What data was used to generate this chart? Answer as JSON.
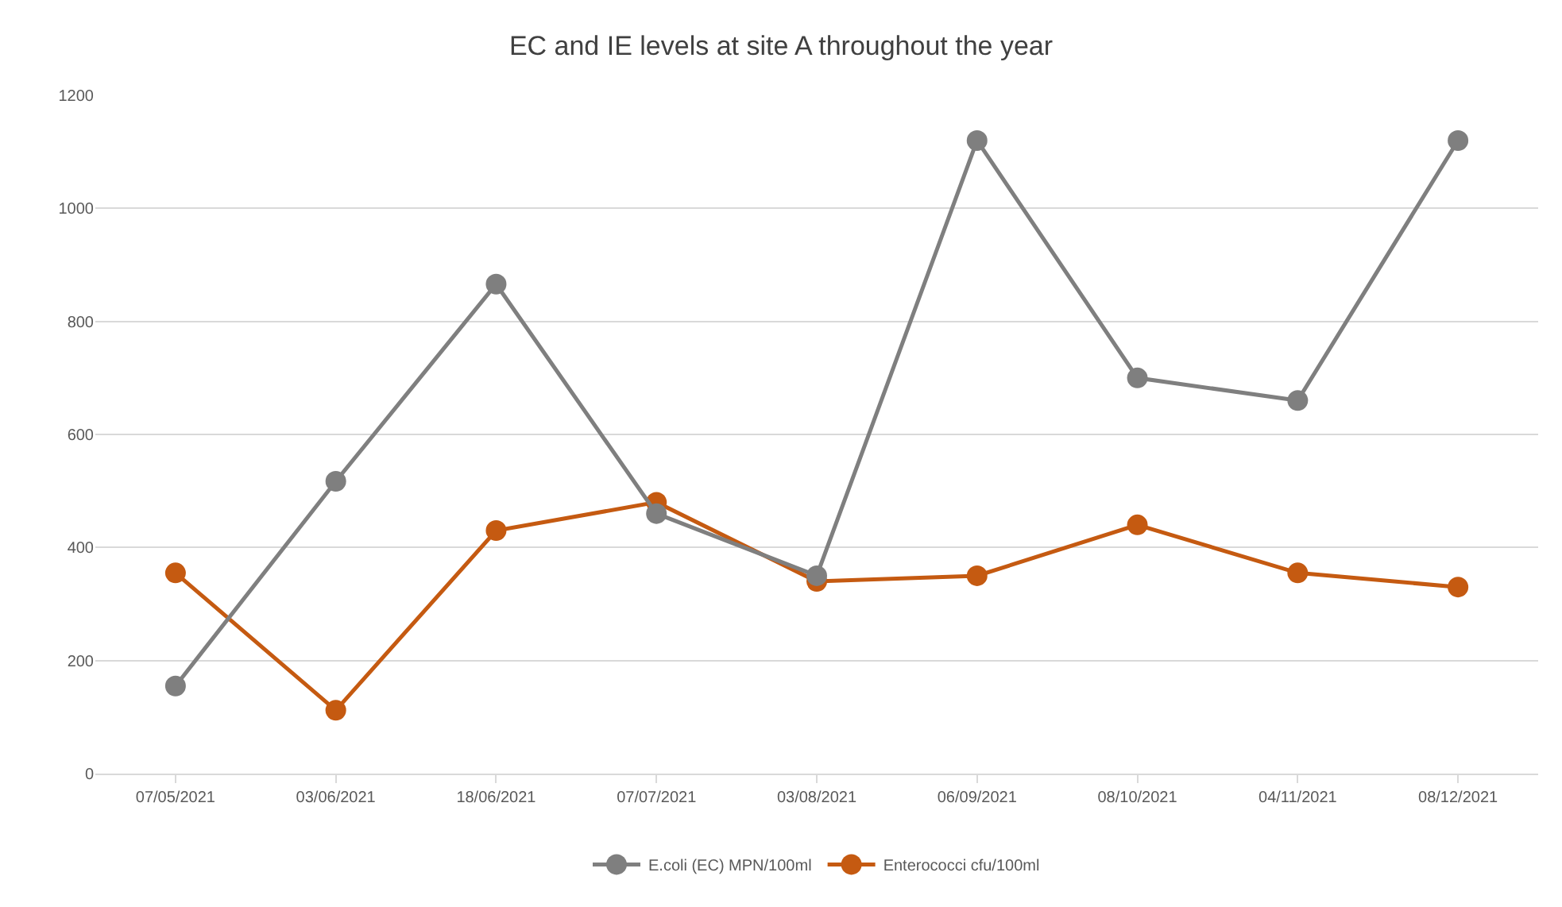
{
  "chart_data": {
    "type": "line",
    "title": "EC and IE levels at site A throughout the year",
    "categories": [
      "07/05/2021",
      "03/06/2021",
      "18/06/2021",
      "07/07/2021",
      "03/08/2021",
      "06/09/2021",
      "08/10/2021",
      "04/11/2021",
      "08/12/2021"
    ],
    "series": [
      {
        "name": "E.coli (EC) MPN/100ml",
        "color": "#7f7f7f",
        "values": [
          155,
          517,
          866,
          460,
          350,
          1120,
          700,
          660,
          1120
        ]
      },
      {
        "name": "Enterococci cfu/100ml",
        "color": "#c55a11",
        "values": [
          355,
          112,
          430,
          480,
          340,
          350,
          440,
          355,
          330
        ]
      }
    ],
    "ylim": [
      0,
      1200
    ],
    "yticks": [
      0,
      200,
      400,
      600,
      800,
      1000,
      1200
    ],
    "grid": "y",
    "legend": "bottom",
    "marker": "circle",
    "line_style": "solid"
  }
}
